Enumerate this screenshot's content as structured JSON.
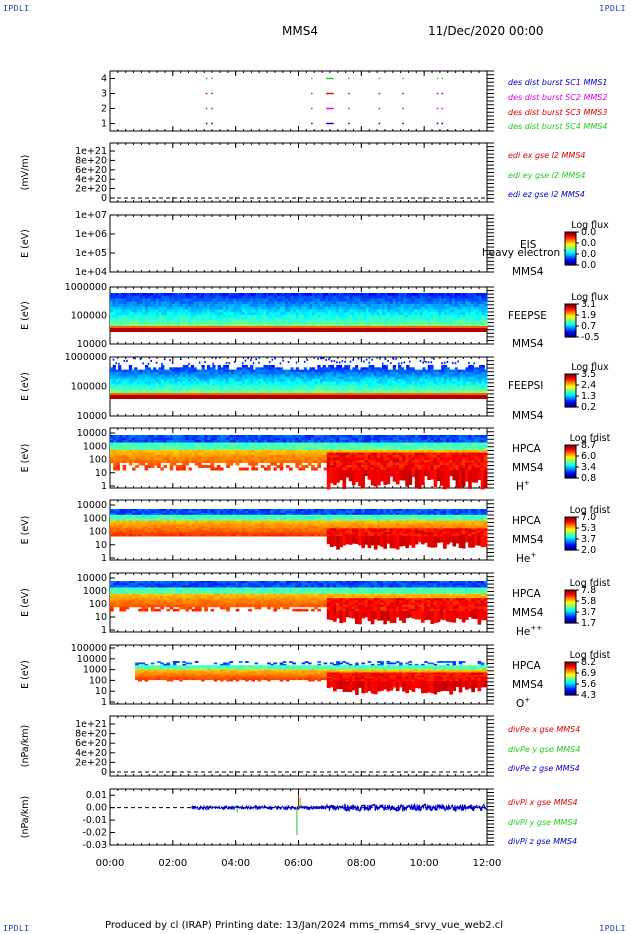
{
  "corners": {
    "tl": "IPDLI",
    "tr": "IPDLI",
    "bl": "IPDLI",
    "br": "IPDLI"
  },
  "header": {
    "spacecraft": "MMS4",
    "date": "11/Dec/2020 00:00"
  },
  "footer": {
    "text": "Produced by cl (IRAP)   Printing date: 13/Jan/2024   mms_mms4_srvy_vue_web2.cl"
  },
  "colors": {
    "red": "#dd0000",
    "green": "#22cc22",
    "blue": "#0000cc",
    "magenta": "#dd00dd",
    "black": "#000000"
  },
  "chart_data": [
    {
      "type": "line",
      "id": "burst",
      "ylim": [
        0.5,
        4.5
      ],
      "yticks": [
        "1",
        "2",
        "3",
        "4"
      ],
      "legend": [
        {
          "text": "des dist burst SC1 MMS1",
          "color": "#0000cc"
        },
        {
          "text": "des dist burst SC2 MMS2",
          "color": "#dd00dd"
        },
        {
          "text": "des dist burst SC3 MMS3",
          "color": "#dd0000"
        },
        {
          "text": "des dist burst SC4 MMS4",
          "color": "#22cc22"
        }
      ],
      "series": [
        {
          "color": "#0000cc",
          "y": 1,
          "segments": [
            [
              3.05,
              3.1
            ],
            [
              3.22,
              3.27
            ],
            [
              6.4,
              6.43
            ],
            [
              6.88,
              7.12
            ],
            [
              7.58,
              7.62
            ],
            [
              8.55,
              8.58
            ],
            [
              9.3,
              9.33
            ],
            [
              10.4,
              10.45
            ],
            [
              10.55,
              10.6
            ]
          ]
        },
        {
          "color": "#dd00dd",
          "y": 2,
          "segments": [
            [
              3.05,
              3.1
            ],
            [
              3.22,
              3.27
            ],
            [
              6.4,
              6.43
            ],
            [
              6.88,
              7.12
            ],
            [
              7.58,
              7.62
            ],
            [
              8.55,
              8.58
            ],
            [
              9.3,
              9.33
            ],
            [
              10.4,
              10.45
            ],
            [
              10.55,
              10.6
            ]
          ]
        },
        {
          "color": "#dd0000",
          "y": 3,
          "segments": [
            [
              3.05,
              3.1
            ],
            [
              3.22,
              3.27
            ],
            [
              6.4,
              6.43
            ],
            [
              6.88,
              7.12
            ],
            [
              7.58,
              7.62
            ],
            [
              8.55,
              8.58
            ],
            [
              9.3,
              9.33
            ],
            [
              10.4,
              10.45
            ],
            [
              10.55,
              10.6
            ]
          ]
        },
        {
          "color": "#22cc22",
          "y": 4,
          "segments": [
            [
              3.05,
              3.1
            ],
            [
              3.22,
              3.27
            ],
            [
              6.4,
              6.43
            ],
            [
              6.88,
              7.12
            ],
            [
              7.58,
              7.62
            ],
            [
              8.55,
              8.58
            ],
            [
              9.3,
              9.33
            ],
            [
              10.4,
              10.45
            ],
            [
              10.55,
              10.6
            ]
          ]
        }
      ]
    },
    {
      "type": "line",
      "id": "edi",
      "ylabel": "(mV/m)",
      "yticks": [
        "0",
        "2e+20",
        "4e+20",
        "6e+20",
        "8e+20",
        "1e+21"
      ],
      "legend": [
        {
          "text": "edi ex gse l2 MMS4",
          "color": "#dd0000"
        },
        {
          "text": "edi ey gse l2 MMS4",
          "color": "#22cc22"
        },
        {
          "text": "edi ez gse l2 MMS4",
          "color": "#0000cc"
        }
      ]
    },
    {
      "type": "heatmap",
      "id": "eis",
      "ylabel": "E (eV)",
      "scale": "log",
      "yticks": [
        "1e+04",
        "1e+05",
        "1e+06",
        "1e+07"
      ],
      "instrument": "EIS",
      "sc": "MMS4",
      "overlay": "heavy electron to",
      "cbtitle": "Log flux",
      "cbticks": [
        "0.0",
        "0.0",
        "0.0",
        "0.0"
      ]
    },
    {
      "type": "heatmap",
      "id": "feepse",
      "ylabel": "E (eV)",
      "scale": "log",
      "yticks": [
        "10000",
        "100000",
        "1000000"
      ],
      "instrument": "FEEPSE",
      "sc": "MMS4",
      "cbtitle": "Log flux",
      "cbticks": [
        "3.1",
        "1.9",
        "0.7",
        "-0.5"
      ]
    },
    {
      "type": "heatmap",
      "id": "feepsi",
      "ylabel": "E (eV)",
      "scale": "log",
      "yticks": [
        "10000",
        "100000",
        "1000000"
      ],
      "instrument": "FEEPSI",
      "sc": "MMS4",
      "cbtitle": "Log flux",
      "cbticks": [
        "3.5",
        "2.4",
        "1.3",
        "0.2"
      ]
    },
    {
      "type": "heatmap",
      "id": "hpca_h",
      "ylabel": "E (eV)",
      "scale": "log",
      "yticks": [
        "1",
        "10",
        "100",
        "1000",
        "10000"
      ],
      "instrument": "HPCA",
      "sc": "MMS4",
      "species": "H",
      "charge": "+",
      "cbtitle": "Log fdist",
      "cbticks": [
        "8.7",
        "6.0",
        "3.4",
        "0.8"
      ]
    },
    {
      "type": "heatmap",
      "id": "hpca_he1",
      "ylabel": "E (eV)",
      "scale": "log",
      "yticks": [
        "1",
        "10",
        "100",
        "1000",
        "10000"
      ],
      "instrument": "HPCA",
      "sc": "MMS4",
      "species": "He",
      "charge": "+",
      "cbtitle": "Log fdist",
      "cbticks": [
        "7.0",
        "5.3",
        "3.7",
        "2.0"
      ]
    },
    {
      "type": "heatmap",
      "id": "hpca_he2",
      "ylabel": "E (eV)",
      "scale": "log",
      "yticks": [
        "1",
        "10",
        "100",
        "1000",
        "10000"
      ],
      "instrument": "HPCA",
      "sc": "MMS4",
      "species": "He",
      "charge": "++",
      "cbtitle": "Log fdist",
      "cbticks": [
        "7.8",
        "5.8",
        "3.7",
        "1.7"
      ]
    },
    {
      "type": "heatmap",
      "id": "hpca_o",
      "ylabel": "E (eV)",
      "scale": "log",
      "yticks": [
        "1",
        "10",
        "100",
        "1000",
        "10000",
        "100000"
      ],
      "instrument": "HPCA",
      "sc": "MMS4",
      "species": "O",
      "charge": "+",
      "cbtitle": "Log fdist",
      "cbticks": [
        "8.2",
        "6.9",
        "5.6",
        "4.3"
      ]
    },
    {
      "type": "line",
      "id": "divpe",
      "ylabel": "(nPa/km)",
      "yticks": [
        "0",
        "2e+20",
        "4e+20",
        "6e+20",
        "8e+20",
        "1e+21"
      ],
      "legend": [
        {
          "text": "divPe x gse MMS4",
          "color": "#dd0000"
        },
        {
          "text": "divPe y gse MMS4",
          "color": "#22cc22"
        },
        {
          "text": "divPe z gse MMS4",
          "color": "#0000cc"
        }
      ]
    },
    {
      "type": "line",
      "id": "divpi",
      "ylabel": "(nPa/km)",
      "ylim": [
        -0.03,
        0.015
      ],
      "yticks": [
        "-0.03",
        "-0.02",
        "-0.01",
        "0.00",
        "0.01"
      ],
      "legend": [
        {
          "text": "divPi x gse MMS4",
          "color": "#dd0000"
        },
        {
          "text": "divPi y gse MMS4",
          "color": "#22cc22"
        },
        {
          "text": "divPi z gse MMS4",
          "color": "#0000cc"
        }
      ],
      "series": [
        {
          "name": "divPi z gse MMS4",
          "color": "#0000cc",
          "x_range": [
            2.6,
            12.0
          ],
          "baseline": 0.0,
          "amp": 0.0015
        },
        {
          "name": "divPi y gse MMS4",
          "color": "#22cc22",
          "spikes": [
            [
              4.05,
              -0.004
            ],
            [
              5.95,
              -0.022
            ],
            [
              6.05,
              0.008
            ]
          ]
        },
        {
          "name": "divPi x gse MMS4",
          "color": "#dd0000",
          "spikes": [
            [
              6.0,
              0.011
            ]
          ]
        }
      ]
    }
  ],
  "xaxis": {
    "ticks": [
      "00:00",
      "02:00",
      "04:00",
      "06:00",
      "08:00",
      "10:00",
      "12:00"
    ],
    "range": [
      0,
      12
    ]
  }
}
